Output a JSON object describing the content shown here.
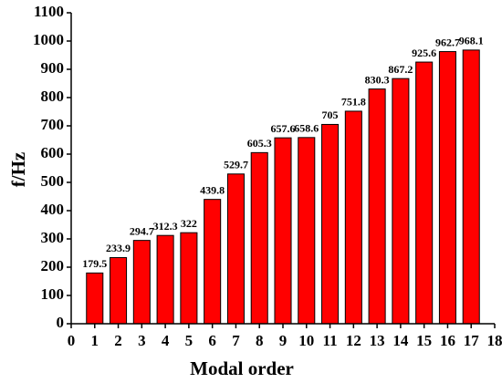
{
  "chart_data": {
    "type": "bar",
    "x_label": "Modal order",
    "y_label": "f/Hz",
    "x": [
      1,
      2,
      3,
      4,
      5,
      6,
      7,
      8,
      9,
      10,
      11,
      12,
      13,
      14,
      15,
      16,
      17
    ],
    "values": [
      179.5,
      233.9,
      294.7,
      312.3,
      322,
      439.8,
      529.7,
      605.3,
      657.6,
      658.6,
      705,
      751.8,
      830.3,
      867.2,
      925.6,
      962.7,
      968.1
    ],
    "color": "#ff0000",
    "xlim": [
      0,
      18
    ],
    "xticks": [
      0,
      1,
      2,
      3,
      4,
      5,
      6,
      7,
      8,
      9,
      10,
      11,
      12,
      13,
      14,
      15,
      16,
      17,
      18
    ],
    "ylim": [
      0,
      1100
    ],
    "yticks": [
      0,
      100,
      200,
      300,
      400,
      500,
      600,
      700,
      800,
      900,
      1000,
      1100
    ]
  }
}
